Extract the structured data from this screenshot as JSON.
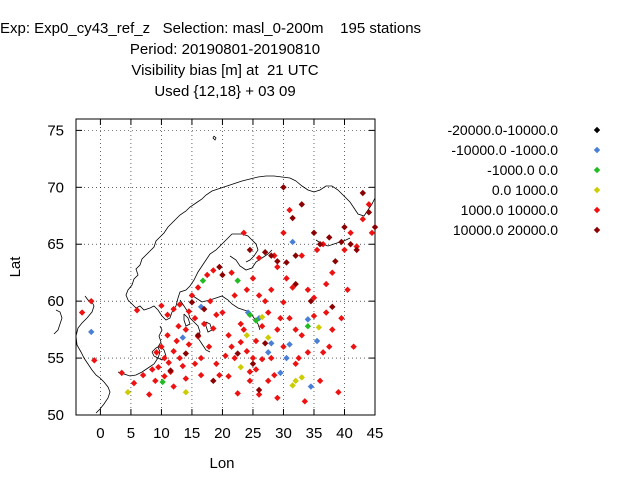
{
  "title_lines": [
    "Exp: Exp0_cy43_ref_z   Selection: masl_0-200m    195 stations",
    "Period: 20190801-20190810",
    "Visibility bias [m] at  21 UTC",
    "Used {12,18} + 03 09"
  ],
  "chart_data": {
    "type": "scatter",
    "title": "Visibility bias [m] at  21 UTC",
    "xlabel": "Lon",
    "ylabel": "Lat",
    "xlim": [
      -4,
      45
    ],
    "ylim": [
      50,
      76
    ],
    "xticks": [
      0,
      5,
      10,
      15,
      20,
      25,
      30,
      35,
      40,
      45
    ],
    "yticks": [
      50,
      55,
      60,
      65,
      70,
      75
    ],
    "grid": true,
    "legend_position": "right",
    "series": [
      {
        "name": "-20000.0-10000.0",
        "color": "#000000",
        "points": []
      },
      {
        "name": "-10000.0 -1000.0",
        "color": "#4a7fd6",
        "points": [
          [
            -1.5,
            57.3
          ],
          [
            13.5,
            56.8
          ],
          [
            24.2,
            59.0
          ],
          [
            26.0,
            58.5
          ],
          [
            28.0,
            56.3
          ],
          [
            27.5,
            55.5
          ],
          [
            29.5,
            53.7
          ],
          [
            30.5,
            55.0
          ],
          [
            31.0,
            56.2
          ],
          [
            31.5,
            65.2
          ],
          [
            34.0,
            58.4
          ],
          [
            34.5,
            52.5
          ],
          [
            35.5,
            56.5
          ],
          [
            16.5,
            59.5
          ]
        ]
      },
      {
        "name": "-1000.0 0.0",
        "color": "#22bb22",
        "points": [
          [
            16.8,
            61.8
          ],
          [
            24.5,
            58.8
          ],
          [
            25.5,
            58.3
          ],
          [
            10.2,
            52.9
          ],
          [
            34.0,
            57.8
          ],
          [
            22.5,
            61.8
          ]
        ]
      },
      {
        "name": "0.0 1000.0",
        "color": "#cccc00",
        "points": [
          [
            4.5,
            52.0
          ],
          [
            14.0,
            52.0
          ],
          [
            23.0,
            54.2
          ],
          [
            27.5,
            56.8
          ],
          [
            32.0,
            53.0
          ],
          [
            33.0,
            53.3
          ],
          [
            35.8,
            57.7
          ],
          [
            26.5,
            58.6
          ],
          [
            31.5,
            52.6
          ],
          [
            24.0,
            57.0
          ]
        ]
      },
      {
        "name": "1000.0 10000.0",
        "color": "#ee1111",
        "points": [
          [
            -3.0,
            59.0
          ],
          [
            -1.5,
            60.0
          ],
          [
            -1.0,
            54.8
          ],
          [
            3.5,
            53.7
          ],
          [
            5.5,
            52.8
          ],
          [
            6.0,
            59.2
          ],
          [
            7.0,
            53.5
          ],
          [
            8.0,
            51.8
          ],
          [
            8.5,
            54.0
          ],
          [
            9.0,
            53.0
          ],
          [
            9.2,
            55.5
          ],
          [
            9.5,
            54.2
          ],
          [
            10.0,
            59.6
          ],
          [
            10.0,
            56.0
          ],
          [
            10.5,
            53.4
          ],
          [
            10.5,
            55.0
          ],
          [
            11.0,
            58.8
          ],
          [
            11.0,
            57.0
          ],
          [
            11.2,
            54.6
          ],
          [
            11.5,
            53.8
          ],
          [
            12.0,
            55.6
          ],
          [
            12.0,
            52.5
          ],
          [
            12.0,
            59.3
          ],
          [
            12.5,
            56.5
          ],
          [
            13.0,
            59.7
          ],
          [
            13.0,
            55.0
          ],
          [
            13.5,
            54.3
          ],
          [
            14.0,
            53.2
          ],
          [
            14.0,
            57.5
          ],
          [
            14.5,
            59.1
          ],
          [
            14.5,
            56.2
          ],
          [
            15.0,
            60.5
          ],
          [
            15.5,
            58.5
          ],
          [
            15.5,
            54.5
          ],
          [
            16.0,
            56.9
          ],
          [
            16.0,
            61.2
          ],
          [
            16.5,
            53.5
          ],
          [
            17.0,
            58.0
          ],
          [
            17.5,
            62.3
          ],
          [
            17.8,
            56.0
          ],
          [
            18.0,
            60.0
          ],
          [
            18.5,
            62.7
          ],
          [
            18.5,
            57.6
          ],
          [
            19.0,
            54.5
          ],
          [
            19.5,
            53.5
          ],
          [
            20.0,
            59.0
          ],
          [
            21.0,
            57.0
          ],
          [
            21.0,
            53.4
          ],
          [
            21.5,
            56.0
          ],
          [
            22.0,
            55.0
          ],
          [
            22.0,
            60.5
          ],
          [
            22.5,
            51.9
          ],
          [
            23.0,
            56.4
          ],
          [
            23.5,
            57.5
          ],
          [
            24.0,
            55.6
          ],
          [
            24.0,
            61.0
          ],
          [
            24.5,
            53.0
          ],
          [
            25.0,
            55.0
          ],
          [
            25.0,
            62.0
          ],
          [
            25.5,
            54.0
          ],
          [
            25.5,
            56.5
          ],
          [
            26.0,
            51.8
          ],
          [
            26.5,
            54.9
          ],
          [
            26.5,
            57.8
          ],
          [
            27.0,
            60.0
          ],
          [
            27.5,
            59.0
          ],
          [
            27.5,
            53.0
          ],
          [
            28.0,
            55.0
          ],
          [
            28.0,
            61.0
          ],
          [
            28.5,
            64.0
          ],
          [
            29.0,
            51.5
          ],
          [
            29.0,
            57.5
          ],
          [
            29.5,
            58.5
          ],
          [
            30.0,
            56.0
          ],
          [
            30.0,
            59.9
          ],
          [
            30.5,
            62.0
          ],
          [
            31.0,
            58.5
          ],
          [
            31.5,
            61.2
          ],
          [
            32.0,
            54.5
          ],
          [
            32.0,
            57.5
          ],
          [
            32.5,
            55.0
          ],
          [
            33.0,
            64.0
          ],
          [
            33.5,
            51.2
          ],
          [
            34.0,
            55.5
          ],
          [
            34.0,
            61.0
          ],
          [
            35.0,
            60.3
          ],
          [
            35.5,
            64.5
          ],
          [
            36.0,
            53.0
          ],
          [
            36.5,
            55.5
          ],
          [
            37.0,
            59.0
          ],
          [
            37.5,
            56.0
          ],
          [
            38.0,
            62.5
          ],
          [
            38.0,
            57.5
          ],
          [
            39.0,
            52.0
          ],
          [
            39.5,
            58.5
          ],
          [
            40.0,
            64.5
          ],
          [
            40.5,
            61.0
          ],
          [
            41.0,
            66.0
          ],
          [
            41.5,
            56.0
          ],
          [
            42.0,
            64.8
          ],
          [
            43.0,
            67.2
          ],
          [
            44.0,
            68.5
          ],
          [
            44.5,
            66.0
          ],
          [
            31.0,
            68.0
          ],
          [
            26.0,
            63.8
          ],
          [
            23.0,
            58.0
          ],
          [
            20.5,
            55.2
          ],
          [
            19.0,
            58.8
          ],
          [
            16.5,
            55.0
          ],
          [
            12.8,
            57.8
          ],
          [
            36.5,
            65.0
          ],
          [
            30.0,
            66.0
          ],
          [
            21.5,
            62.5
          ],
          [
            24.5,
            53.8
          ],
          [
            33.0,
            57.0
          ],
          [
            37.0,
            61.5
          ],
          [
            26.0,
            60.5
          ],
          [
            29.0,
            63.0
          ],
          [
            23.5,
            66.0
          ],
          [
            28.5,
            53.5
          ],
          [
            35.0,
            58.7
          ]
        ]
      },
      {
        "name": "10000.0 20000.0",
        "color": "#8b0000",
        "points": [
          [
            14.0,
            55.4
          ],
          [
            15.0,
            59.9
          ],
          [
            16.0,
            57.0
          ],
          [
            18.5,
            53.0
          ],
          [
            20.0,
            62.3
          ],
          [
            24.5,
            64.5
          ],
          [
            27.0,
            64.3
          ],
          [
            28.0,
            64.0
          ],
          [
            29.0,
            63.5
          ],
          [
            30.5,
            63.4
          ],
          [
            31.5,
            67.3
          ],
          [
            32.0,
            64.0
          ],
          [
            33.0,
            68.5
          ],
          [
            35.0,
            66.0
          ],
          [
            36.0,
            65.0
          ],
          [
            37.5,
            65.6
          ],
          [
            39.5,
            65.2
          ],
          [
            40.0,
            66.5
          ],
          [
            41.0,
            65.0
          ],
          [
            42.0,
            64.5
          ],
          [
            43.0,
            69.5
          ],
          [
            44.0,
            67.8
          ],
          [
            45.0,
            66.5
          ],
          [
            30.0,
            70.0
          ],
          [
            26.0,
            52.2
          ],
          [
            25.0,
            54.5
          ],
          [
            27.0,
            56.3
          ],
          [
            22.5,
            55.4
          ],
          [
            11.5,
            53.9
          ],
          [
            17.0,
            59.3
          ],
          [
            38.5,
            63.5
          ],
          [
            32.0,
            61.5
          ],
          [
            34.5,
            60.0
          ],
          [
            38.0,
            59.5
          ],
          [
            19.5,
            63.0
          ]
        ]
      }
    ]
  }
}
